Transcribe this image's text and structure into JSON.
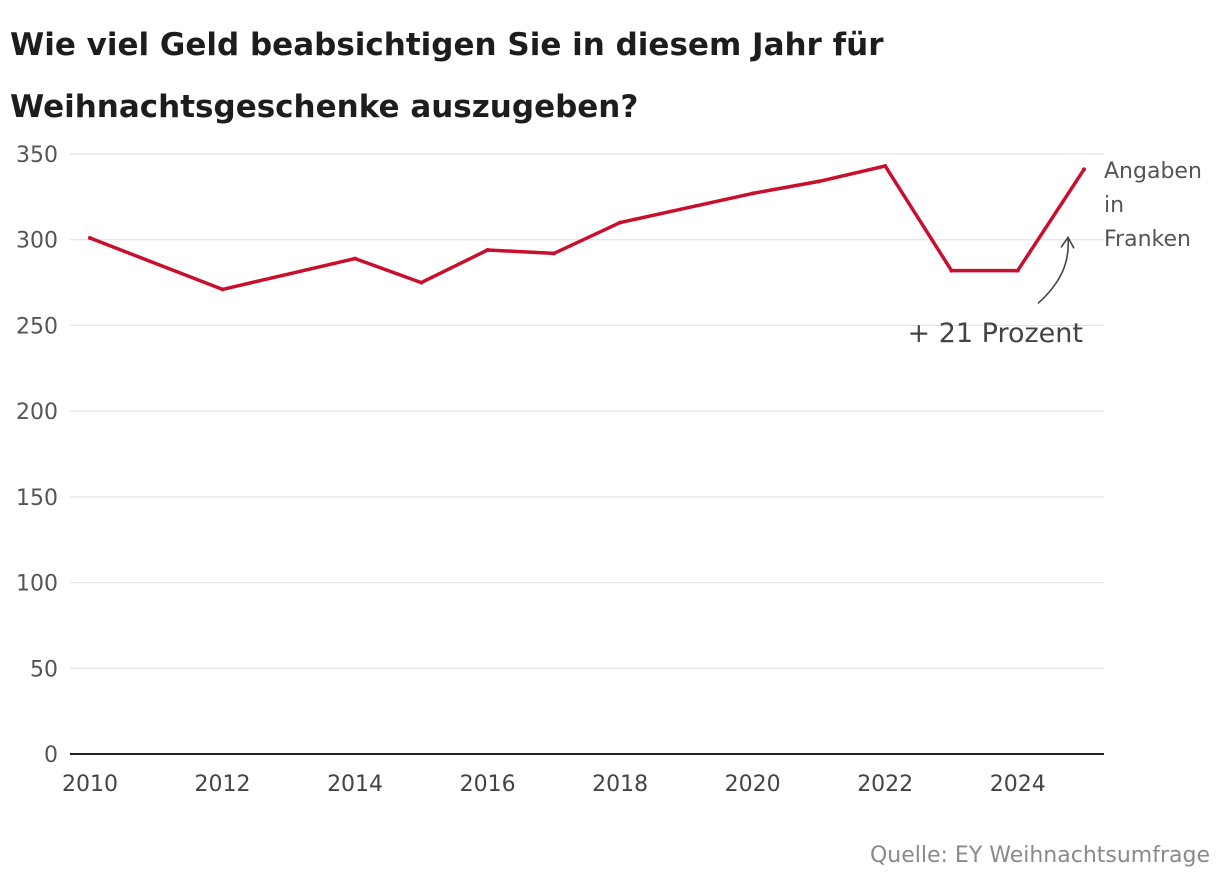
{
  "title": "Wie viel Geld beabsichtigen Sie in diesem Jahr für Weihnachtsgeschenke auszugeben?",
  "source": "Quelle: EY Weihnachtsumfrage",
  "chart_data": {
    "type": "line",
    "title": "Wie viel Geld beabsichtigen Sie in diesem Jahr für Weihnachtsgeschenke auszugeben?",
    "unit_label": [
      "Angaben",
      "in",
      "Franken"
    ],
    "annotation": "+ 21 Prozent",
    "x": [
      2010,
      2012,
      2014,
      2015,
      2016,
      2017,
      2018,
      2020,
      2021,
      2022,
      2023,
      2024,
      2025
    ],
    "series": [
      {
        "values": [
          301,
          271,
          289,
          275,
          294,
          292,
          310,
          327,
          334,
          343,
          282,
          282,
          341
        ]
      }
    ],
    "xticks": [
      "2010",
      "2012",
      "2014",
      "2016",
      "2018",
      "2020",
      "2022",
      "2024"
    ],
    "yticks": [
      "0",
      "50",
      "100",
      "150",
      "200",
      "250",
      "300",
      "350"
    ],
    "xlim": [
      2010,
      2025
    ],
    "ylim": [
      0,
      350
    ],
    "grid": true,
    "line_color": "#c8102e"
  }
}
